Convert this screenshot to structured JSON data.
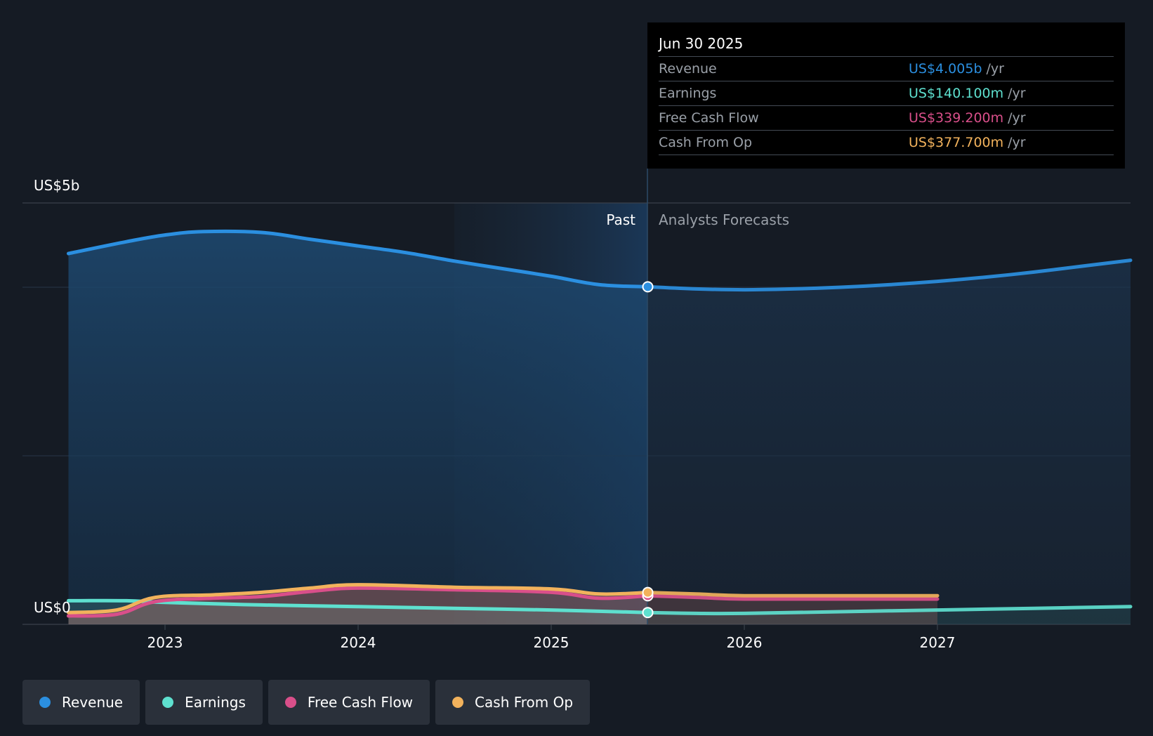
{
  "chart_data": {
    "type": "line",
    "y_axis": {
      "top_label": "US$5b",
      "bottom_label": "US$0",
      "ylim": [
        0,
        5
      ]
    },
    "x_ticks": [
      "2023",
      "2024",
      "2025",
      "2026",
      "2027"
    ],
    "region_labels": {
      "past": "Past",
      "forecast": "Analysts Forecasts"
    },
    "divider_date": "2025-06-30",
    "series": [
      {
        "name": "Revenue",
        "color": "#2b8fe0",
        "unit": "US$b",
        "past": [
          [
            2022.5,
            4.4
          ],
          [
            2022.8,
            4.54
          ],
          [
            2023.0,
            4.62
          ],
          [
            2023.2,
            4.66
          ],
          [
            2023.5,
            4.65
          ],
          [
            2023.75,
            4.57
          ],
          [
            2024.0,
            4.49
          ],
          [
            2024.25,
            4.41
          ],
          [
            2024.5,
            4.31
          ],
          [
            2024.75,
            4.22
          ],
          [
            2025.0,
            4.13
          ],
          [
            2025.25,
            4.03
          ],
          [
            2025.5,
            4.005
          ]
        ],
        "forecast": [
          [
            2025.5,
            4.005
          ],
          [
            2025.75,
            3.98
          ],
          [
            2026.0,
            3.97
          ],
          [
            2026.25,
            3.98
          ],
          [
            2026.5,
            4.0
          ],
          [
            2026.75,
            4.03
          ],
          [
            2027.0,
            4.07
          ],
          [
            2027.25,
            4.12
          ],
          [
            2027.5,
            4.18
          ],
          [
            2027.75,
            4.25
          ],
          [
            2028.0,
            4.32
          ]
        ]
      },
      {
        "name": "Earnings",
        "color": "#5ee0cf",
        "unit": "US$b",
        "past": [
          [
            2022.5,
            0.28
          ],
          [
            2022.8,
            0.28
          ],
          [
            2023.0,
            0.26
          ],
          [
            2023.5,
            0.23
          ],
          [
            2024.0,
            0.21
          ],
          [
            2024.5,
            0.19
          ],
          [
            2025.0,
            0.17
          ],
          [
            2025.5,
            0.14
          ]
        ],
        "forecast": [
          [
            2025.5,
            0.14
          ],
          [
            2025.75,
            0.13
          ],
          [
            2026.0,
            0.13
          ],
          [
            2026.5,
            0.15
          ],
          [
            2027.0,
            0.17
          ],
          [
            2027.5,
            0.19
          ],
          [
            2028.0,
            0.21
          ]
        ]
      },
      {
        "name": "Free Cash Flow",
        "color": "#d94f8a",
        "unit": "US$b",
        "past": [
          [
            2022.5,
            0.1
          ],
          [
            2022.75,
            0.12
          ],
          [
            2022.95,
            0.27
          ],
          [
            2023.25,
            0.31
          ],
          [
            2023.5,
            0.33
          ],
          [
            2023.75,
            0.39
          ],
          [
            2024.0,
            0.43
          ],
          [
            2024.5,
            0.41
          ],
          [
            2025.0,
            0.38
          ],
          [
            2025.25,
            0.31
          ],
          [
            2025.5,
            0.339
          ]
        ],
        "forecast": [
          [
            2025.5,
            0.339
          ],
          [
            2025.75,
            0.32
          ],
          [
            2026.0,
            0.3
          ],
          [
            2026.5,
            0.3
          ],
          [
            2027.0,
            0.3
          ]
        ]
      },
      {
        "name": "Cash From Op",
        "color": "#f2b25c",
        "unit": "US$b",
        "past": [
          [
            2022.5,
            0.14
          ],
          [
            2022.75,
            0.17
          ],
          [
            2022.95,
            0.32
          ],
          [
            2023.25,
            0.35
          ],
          [
            2023.5,
            0.38
          ],
          [
            2023.75,
            0.43
          ],
          [
            2024.0,
            0.47
          ],
          [
            2024.5,
            0.44
          ],
          [
            2025.0,
            0.42
          ],
          [
            2025.25,
            0.36
          ],
          [
            2025.5,
            0.3777
          ]
        ],
        "forecast": [
          [
            2025.5,
            0.3777
          ],
          [
            2025.75,
            0.36
          ],
          [
            2026.0,
            0.34
          ],
          [
            2026.5,
            0.34
          ],
          [
            2027.0,
            0.34
          ]
        ]
      }
    ]
  },
  "tooltip": {
    "date": "Jun 30 2025",
    "rows": [
      {
        "label": "Revenue",
        "value": "US$4.005b",
        "unit": "/yr",
        "color": "#2b8fe0"
      },
      {
        "label": "Earnings",
        "value": "US$140.100m",
        "unit": "/yr",
        "color": "#5ee0cf"
      },
      {
        "label": "Free Cash Flow",
        "value": "US$339.200m",
        "unit": "/yr",
        "color": "#d94f8a"
      },
      {
        "label": "Cash From Op",
        "value": "US$377.700m",
        "unit": "/yr",
        "color": "#f2b25c"
      }
    ]
  },
  "legend": [
    {
      "label": "Revenue",
      "color": "#2b8fe0"
    },
    {
      "label": "Earnings",
      "color": "#5ee0cf"
    },
    {
      "label": "Free Cash Flow",
      "color": "#d94f8a"
    },
    {
      "label": "Cash From Op",
      "color": "#f2b25c"
    }
  ]
}
